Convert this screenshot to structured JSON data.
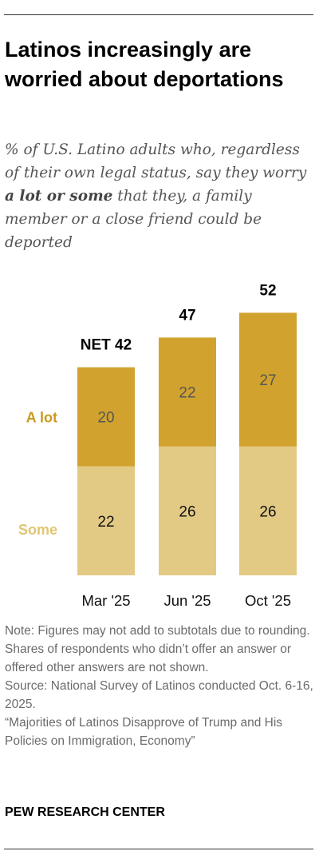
{
  "title": "Latinos increasingly are worried about deportations",
  "subtitle": {
    "before": "% of U.S. Latino adults who, regardless of their own legal status, say they worry ",
    "emphasis": "a lot or some",
    "after": " that they, a family member or a close friend could be deported"
  },
  "notes": {
    "note": "Note: Figures may not add to subtotals due to rounding. Shares of respondents who didn’t offer an answer or offered other answers are not shown.",
    "source": "Source: National Survey of Latinos conducted Oct. 6-16, 2025.",
    "report": "“Majorities of Latinos Disapprove of Trump and His Policies on Immigration, Economy”"
  },
  "organization": "PEW RESEARCH CENTER",
  "colors": {
    "a_lot": "#D1A32E",
    "some": "#E3CA84",
    "a_lot_label": "#C99A1E",
    "some_label": "#E0C574"
  },
  "chart_data": {
    "type": "bar",
    "stacked": true,
    "categories": [
      "Mar '25",
      "Jun '25",
      "Oct '25"
    ],
    "series": [
      {
        "name": "Some",
        "values": [
          22,
          26,
          26
        ]
      },
      {
        "name": "A lot",
        "values": [
          20,
          22,
          27
        ]
      }
    ],
    "totals": [
      42,
      47,
      52
    ],
    "total_labels": [
      "NET 42",
      "47",
      "52"
    ],
    "legend_placement": "left",
    "grid": false
  }
}
